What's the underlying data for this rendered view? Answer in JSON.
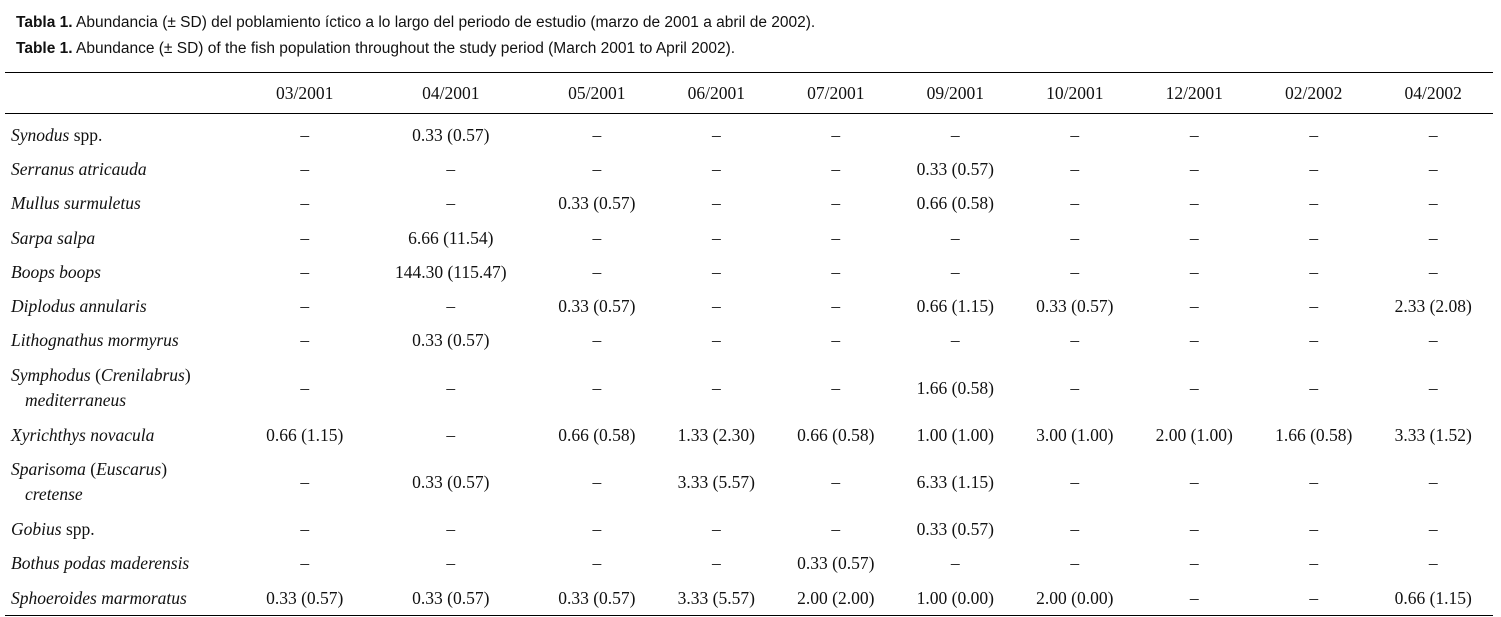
{
  "captions": [
    {
      "label": "Tabla 1.",
      "text": " Abundancia (± SD) del poblamiento íctico a lo largo del periodo de estudio (marzo de 2001 a abril de 2002)."
    },
    {
      "label": "Table 1.",
      "text": " Abundance  (± SD) of the fish population throughout the study period (March 2001 to April 2002)."
    }
  ],
  "table": {
    "columns": [
      "03/2001",
      "04/2001",
      "05/2001",
      "06/2001",
      "07/2001",
      "09/2001",
      "10/2001",
      "12/2001",
      "02/2002",
      "04/2002"
    ],
    "rows": [
      {
        "species": [
          {
            "t": "Synodus",
            "i": true
          },
          {
            "t": " spp.",
            "i": false
          }
        ],
        "values": [
          "–",
          "0.33 (0.57)",
          "–",
          "–",
          "–",
          "–",
          "–",
          "–",
          "–",
          "–"
        ]
      },
      {
        "species": [
          {
            "t": "Serranus atricauda",
            "i": true
          }
        ],
        "values": [
          "–",
          "–",
          "–",
          "–",
          "–",
          "0.33 (0.57)",
          "–",
          "–",
          "–",
          "–"
        ]
      },
      {
        "species": [
          {
            "t": "Mullus surmuletus",
            "i": true
          }
        ],
        "values": [
          "–",
          "–",
          "0.33 (0.57)",
          "–",
          "–",
          "0.66 (0.58)",
          "–",
          "–",
          "–",
          "–"
        ]
      },
      {
        "species": [
          {
            "t": "Sarpa salpa",
            "i": true
          }
        ],
        "values": [
          "–",
          "6.66 (11.54)",
          "–",
          "–",
          "–",
          "–",
          "–",
          "–",
          "–",
          "–"
        ]
      },
      {
        "species": [
          {
            "t": "Boops boops",
            "i": true
          }
        ],
        "values": [
          "–",
          "144.30 (115.47)",
          "–",
          "–",
          "–",
          "–",
          "–",
          "–",
          "–",
          "–"
        ]
      },
      {
        "species": [
          {
            "t": "Diplodus annularis",
            "i": true
          }
        ],
        "values": [
          "–",
          "–",
          "0.33 (0.57)",
          "–",
          "–",
          "0.66 (1.15)",
          "0.33 (0.57)",
          "–",
          "–",
          "2.33 (2.08)"
        ]
      },
      {
        "species": [
          {
            "t": "Lithognathus mormyrus",
            "i": true
          }
        ],
        "values": [
          "–",
          "0.33 (0.57)",
          "–",
          "–",
          "–",
          "–",
          "–",
          "–",
          "–",
          "–"
        ]
      },
      {
        "species": [
          {
            "t": "Symphodus",
            "i": true
          },
          {
            "t": " (",
            "i": false
          },
          {
            "t": "Crenilabrus",
            "i": true
          },
          {
            "t": ")",
            "i": false
          }
        ],
        "species2": "mediterraneus",
        "values": [
          "–",
          "–",
          "–",
          "–",
          "–",
          "1.66 (0.58)",
          "–",
          "–",
          "–",
          "–"
        ]
      },
      {
        "species": [
          {
            "t": "Xyrichthys novacula",
            "i": true
          }
        ],
        "values": [
          "0.66 (1.15)",
          "–",
          "0.66 (0.58)",
          "1.33 (2.30)",
          "0.66 (0.58)",
          "1.00 (1.00)",
          "3.00 (1.00)",
          "2.00 (1.00)",
          "1.66 (0.58)",
          "3.33 (1.52)"
        ]
      },
      {
        "species": [
          {
            "t": "Sparisoma",
            "i": true
          },
          {
            "t": " (",
            "i": false
          },
          {
            "t": "Euscarus",
            "i": true
          },
          {
            "t": ")",
            "i": false
          }
        ],
        "species2": "cretense",
        "values": [
          "–",
          "0.33 (0.57)",
          "–",
          "3.33 (5.57)",
          "–",
          "6.33 (1.15)",
          "–",
          "–",
          "–",
          "–"
        ]
      },
      {
        "species": [
          {
            "t": "Gobius",
            "i": true
          },
          {
            "t": " spp.",
            "i": false
          }
        ],
        "values": [
          "–",
          "–",
          "–",
          "–",
          "–",
          "0.33 (0.57)",
          "–",
          "–",
          "–",
          "–"
        ]
      },
      {
        "species": [
          {
            "t": "Bothus podas maderensis",
            "i": true
          }
        ],
        "values": [
          "–",
          "–",
          "–",
          "–",
          "0.33 (0.57)",
          "–",
          "–",
          "–",
          "–",
          "–"
        ]
      },
      {
        "species": [
          {
            "t": "Sphoeroides marmoratus",
            "i": true
          }
        ],
        "values": [
          "0.33 (0.57)",
          "0.33 (0.57)",
          "0.33 (0.57)",
          "3.33 (5.57)",
          "2.00 (2.00)",
          "1.00 (0.00)",
          "2.00 (0.00)",
          "–",
          "–",
          "0.66 (1.15)"
        ]
      }
    ]
  }
}
